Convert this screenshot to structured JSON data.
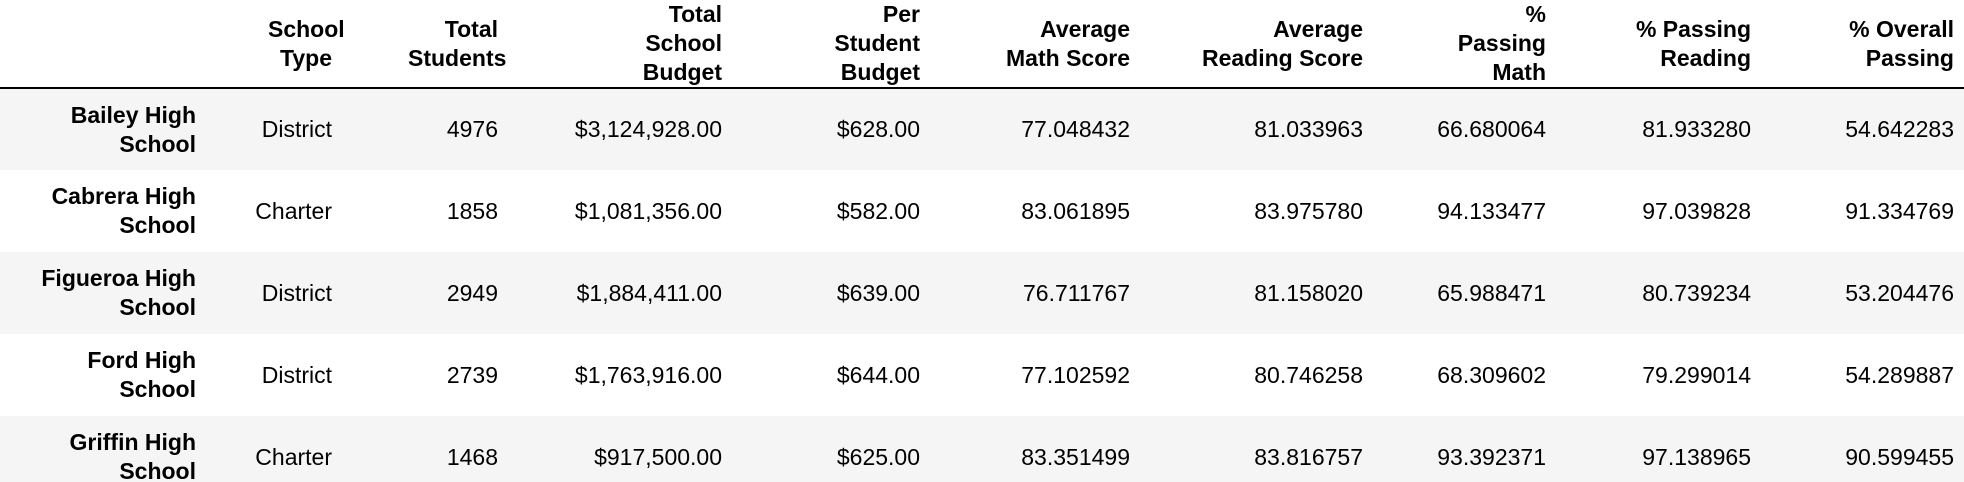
{
  "table": {
    "columns": [
      {
        "key": "index",
        "label": ""
      },
      {
        "key": "school_type",
        "label": "School Type"
      },
      {
        "key": "total_students",
        "label": "Total Students"
      },
      {
        "key": "total_school_budget",
        "label": "Total School Budget"
      },
      {
        "key": "per_student_budget",
        "label": "Per Student Budget"
      },
      {
        "key": "avg_math_score",
        "label": "Average Math Score"
      },
      {
        "key": "avg_reading_score",
        "label": "Average Reading Score"
      },
      {
        "key": "pct_passing_math",
        "label": "% Passing Math"
      },
      {
        "key": "pct_passing_reading",
        "label": "% Passing Reading"
      },
      {
        "key": "pct_overall_passing",
        "label": "% Overall Passing"
      }
    ],
    "rows": [
      {
        "school": "Bailey High School",
        "school_type": "District",
        "total_students": "4976",
        "total_school_budget": "$3,124,928.00",
        "per_student_budget": "$628.00",
        "avg_math_score": "77.048432",
        "avg_reading_score": "81.033963",
        "pct_passing_math": "66.680064",
        "pct_passing_reading": "81.933280",
        "pct_overall_passing": "54.642283"
      },
      {
        "school": "Cabrera High School",
        "school_type": "Charter",
        "total_students": "1858",
        "total_school_budget": "$1,081,356.00",
        "per_student_budget": "$582.00",
        "avg_math_score": "83.061895",
        "avg_reading_score": "83.975780",
        "pct_passing_math": "94.133477",
        "pct_passing_reading": "97.039828",
        "pct_overall_passing": "91.334769"
      },
      {
        "school": "Figueroa High School",
        "school_type": "District",
        "total_students": "2949",
        "total_school_budget": "$1,884,411.00",
        "per_student_budget": "$639.00",
        "avg_math_score": "76.711767",
        "avg_reading_score": "81.158020",
        "pct_passing_math": "65.988471",
        "pct_passing_reading": "80.739234",
        "pct_overall_passing": "53.204476"
      },
      {
        "school": "Ford High School",
        "school_type": "District",
        "total_students": "2739",
        "total_school_budget": "$1,763,916.00",
        "per_student_budget": "$644.00",
        "avg_math_score": "77.102592",
        "avg_reading_score": "80.746258",
        "pct_passing_math": "68.309602",
        "pct_passing_reading": "79.299014",
        "pct_overall_passing": "54.289887"
      },
      {
        "school": "Griffin High School",
        "school_type": "Charter",
        "total_students": "1468",
        "total_school_budget": "$917,500.00",
        "per_student_budget": "$625.00",
        "avg_math_score": "83.351499",
        "avg_reading_score": "83.816757",
        "pct_passing_math": "93.392371",
        "pct_passing_reading": "97.138965",
        "pct_overall_passing": "90.599455"
      }
    ]
  }
}
